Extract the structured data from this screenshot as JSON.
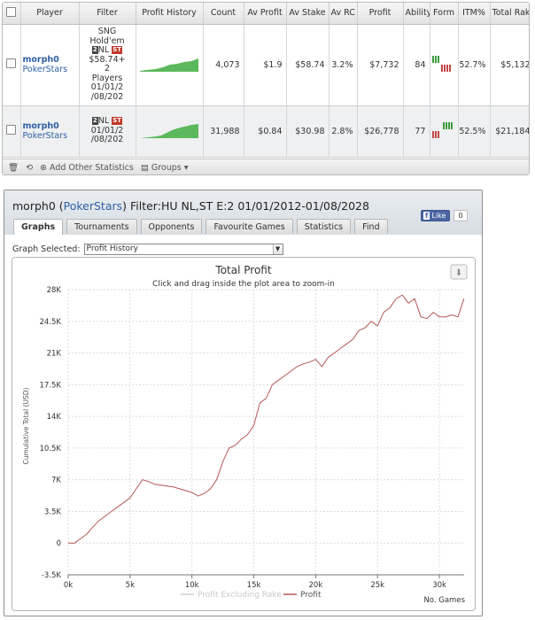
{
  "table": {
    "headers": [
      "Player",
      "Filter",
      "Profit History",
      "Count",
      "Av Profit",
      "Av Stake",
      "Av RC",
      "Profit",
      "Ability",
      "Form",
      "ITM%",
      "Total Rake"
    ],
    "rows": [
      {
        "player": "morph0",
        "site": "PokerStars",
        "filter_line1": "SNG",
        "filter_line2": "Hold'em",
        "filter_badge1": "2",
        "filter_line3": "NL",
        "filter_badge2": "ST",
        "filter_line4": "$58.74+",
        "filter_line5": "2",
        "filter_line6": "Players",
        "filter_line7": "01/01/2",
        "filter_line8": "/08/202",
        "count": "4,073",
        "av_profit": "$1.9",
        "av_stake": "$58.74",
        "av_rc": "3.2%",
        "profit": "$7,732",
        "ability": "84",
        "itm": "52.7%",
        "total_rake": "$5,132"
      },
      {
        "player": "morph0",
        "site": "PokerStars",
        "filter_badge1": "2",
        "filter_line3": "NL",
        "filter_badge2": "ST",
        "filter_line7": "01/01/2",
        "filter_line8": "/08/202",
        "count": "31,988",
        "av_profit": "$0.84",
        "av_stake": "$30.98",
        "av_rc": "2.8%",
        "profit": "$26,778",
        "ability": "77",
        "itm": "52.5%",
        "total_rake": "$21,184"
      }
    ],
    "row_arrow": ">",
    "footer": {
      "add_stats": "Add Other Statistics",
      "groups": "Groups"
    }
  },
  "panel": {
    "title_player": "morph0 (",
    "title_site": "PokerStars",
    "title_rest": ") Filter:HU NL,ST E:2 01/01/2012-01/08/2028",
    "close": "×",
    "like_label": "Like",
    "like_count": "0",
    "tabs": [
      "Graphs",
      "Tournaments",
      "Opponents",
      "Favourite Games",
      "Statistics",
      "Find"
    ],
    "graph_selected_label": "Graph Selected:",
    "graph_selected_value": "Profit History"
  },
  "chart_data": {
    "type": "line",
    "title": "Total Profit",
    "subtitle": "Click and drag inside the plot area to zoom-in",
    "xlabel": "No. Games",
    "ylabel": "Cumulative Total (USD)",
    "xlim": [
      0,
      32000
    ],
    "ylim": [
      -3500,
      28000
    ],
    "x_ticks": [
      "0k",
      "5k",
      "10k",
      "15k",
      "20k",
      "25k",
      "30k"
    ],
    "y_ticks": [
      "-3.5K",
      "0",
      "3.5K",
      "7K",
      "10.5K",
      "14K",
      "17.5K",
      "21K",
      "24.5K",
      "28K"
    ],
    "grid": true,
    "legend_position": "bottom",
    "series": [
      {
        "name": "Profit Excluding Rake",
        "color": "#cfcfcf",
        "x": [],
        "y": []
      },
      {
        "name": "Profit",
        "color": "#b55555",
        "x": [
          0,
          500,
          1000,
          1500,
          2000,
          2500,
          3000,
          3500,
          4000,
          4500,
          5000,
          5500,
          6000,
          6500,
          7000,
          7500,
          8000,
          8500,
          9000,
          9500,
          10000,
          10500,
          11000,
          11500,
          12000,
          12500,
          13000,
          13500,
          14000,
          14500,
          15000,
          15500,
          16000,
          16500,
          17000,
          17500,
          18000,
          18500,
          19000,
          19500,
          20000,
          20500,
          21000,
          21500,
          22000,
          22500,
          23000,
          23500,
          24000,
          24500,
          25000,
          25500,
          26000,
          26500,
          27000,
          27500,
          28000,
          28500,
          29000,
          29500,
          30000,
          30500,
          31000,
          31500,
          31988
        ],
        "y": [
          0,
          0,
          500,
          1000,
          1800,
          2500,
          3000,
          3500,
          4000,
          4500,
          5000,
          6000,
          7000,
          6800,
          6500,
          6400,
          6300,
          6200,
          6000,
          5800,
          5600,
          5200,
          5500,
          6000,
          7000,
          9000,
          10500,
          10800,
          11500,
          12000,
          13000,
          15500,
          16000,
          17500,
          18000,
          18500,
          19000,
          19500,
          19800,
          20000,
          20300,
          19500,
          20500,
          21000,
          21500,
          22000,
          22500,
          23500,
          23800,
          24500,
          24000,
          25500,
          26000,
          27000,
          27400,
          26500,
          27000,
          25000,
          24800,
          25500,
          25000,
          25000,
          25200,
          25000,
          27000
        ]
      }
    ]
  }
}
